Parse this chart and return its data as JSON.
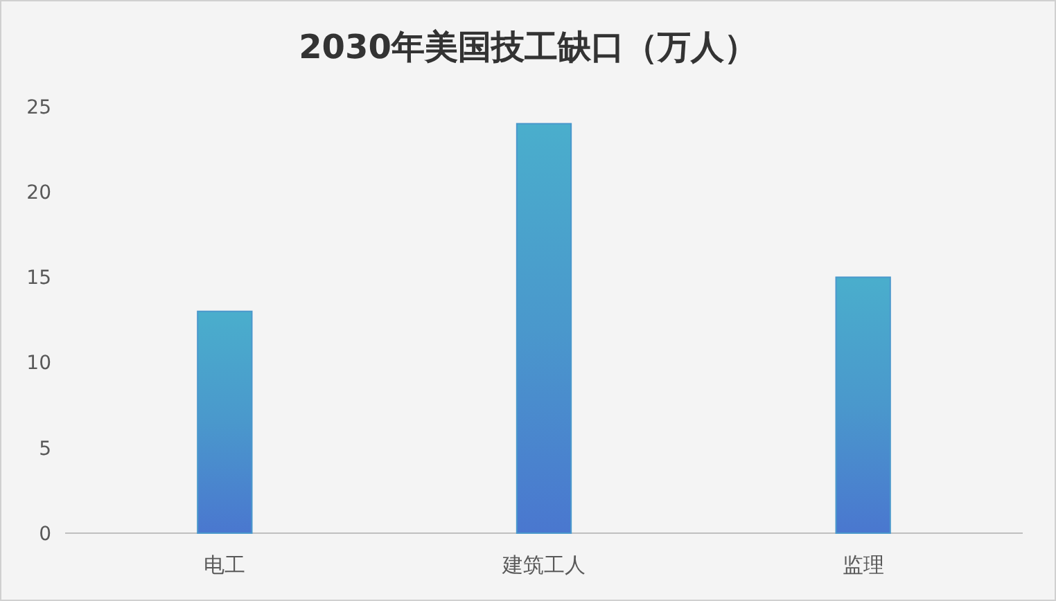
{
  "chart_data": {
    "type": "bar",
    "title": "2030年美国技工缺口（万人）",
    "categories": [
      "电工",
      "建筑工人",
      "监理"
    ],
    "values": [
      13,
      24,
      15
    ],
    "color": "#4a98cc",
    "ylim": [
      0,
      25
    ],
    "yticks": [
      0,
      5,
      10,
      15,
      20,
      25
    ],
    "grid": false
  }
}
